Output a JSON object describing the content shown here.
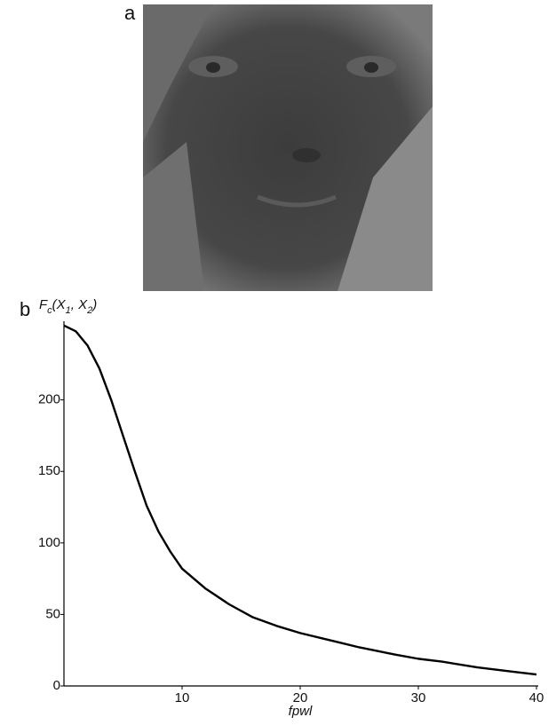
{
  "panels": [
    "a",
    "b"
  ],
  "chart_data": {
    "type": "line",
    "xlabel": "fpwl",
    "ylabel_parts": [
      "F",
      "c",
      "(X",
      "1",
      ", X",
      "2",
      ")"
    ],
    "x": [
      0,
      1,
      2,
      3,
      4,
      5,
      6,
      7,
      8,
      9,
      10,
      12,
      14,
      16,
      18,
      20,
      22,
      25,
      28,
      30,
      32,
      35,
      38,
      40
    ],
    "series": [
      {
        "color": "#000000",
        "values": [
          252,
          248,
          238,
          222,
          200,
          175,
          150,
          126,
          108,
          94,
          82,
          68,
          57,
          48,
          42,
          37,
          33,
          27,
          22,
          19,
          17,
          13,
          10,
          8
        ]
      }
    ],
    "xlim": [
      0,
      40
    ],
    "xticks": [
      10,
      20,
      30,
      40
    ],
    "ylim": [
      0,
      255
    ],
    "yticks": [
      0,
      50,
      100,
      150,
      200
    ],
    "grid": false
  }
}
